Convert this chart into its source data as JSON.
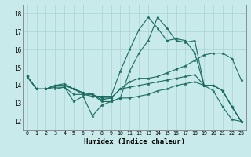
{
  "title": "",
  "xlabel": "Humidex (Indice chaleur)",
  "ylabel": "",
  "background_color": "#c8eaea",
  "grid_color": "#aad4d0",
  "line_color": "#1a6b60",
  "xlim": [
    -0.5,
    23.5
  ],
  "ylim": [
    11.5,
    18.5
  ],
  "xticks": [
    0,
    1,
    2,
    3,
    4,
    5,
    6,
    7,
    8,
    9,
    10,
    11,
    12,
    13,
    14,
    15,
    16,
    17,
    18,
    19,
    20,
    21,
    22,
    23
  ],
  "yticks": [
    12,
    13,
    14,
    15,
    16,
    17,
    18
  ],
  "series": [
    [
      14.5,
      13.8,
      13.8,
      13.8,
      13.9,
      13.1,
      13.4,
      12.3,
      12.9,
      13.1,
      13.3,
      14.8,
      15.8,
      16.5,
      17.8,
      17.2,
      16.5,
      16.4,
      16.5,
      14.0,
      13.7,
      12.8,
      12.1,
      12.0
    ],
    [
      14.5,
      13.8,
      13.8,
      13.9,
      13.9,
      13.5,
      13.5,
      13.4,
      13.4,
      13.4,
      14.8,
      16.0,
      17.1,
      17.8,
      17.2,
      16.5,
      16.6,
      16.5,
      15.8,
      14.0,
      14.0,
      13.7,
      12.8,
      12.0
    ],
    [
      14.5,
      13.8,
      13.8,
      14.0,
      14.0,
      13.8,
      13.6,
      13.5,
      13.2,
      13.3,
      13.8,
      14.2,
      14.4,
      14.4,
      14.5,
      14.7,
      14.9,
      15.1,
      15.4,
      15.7,
      15.8,
      15.8,
      15.5,
      14.3
    ],
    [
      14.5,
      13.8,
      13.8,
      14.0,
      14.1,
      13.8,
      13.6,
      13.5,
      13.3,
      13.3,
      13.8,
      13.9,
      14.0,
      14.1,
      14.2,
      14.3,
      14.4,
      14.5,
      14.6,
      14.0,
      14.0,
      13.7,
      12.8,
      12.0
    ],
    [
      14.5,
      13.8,
      13.8,
      14.0,
      14.0,
      13.8,
      13.5,
      13.5,
      13.1,
      13.1,
      13.3,
      13.3,
      13.4,
      13.5,
      13.7,
      13.8,
      14.0,
      14.1,
      14.2,
      14.0,
      14.0,
      13.7,
      12.8,
      12.0
    ]
  ]
}
